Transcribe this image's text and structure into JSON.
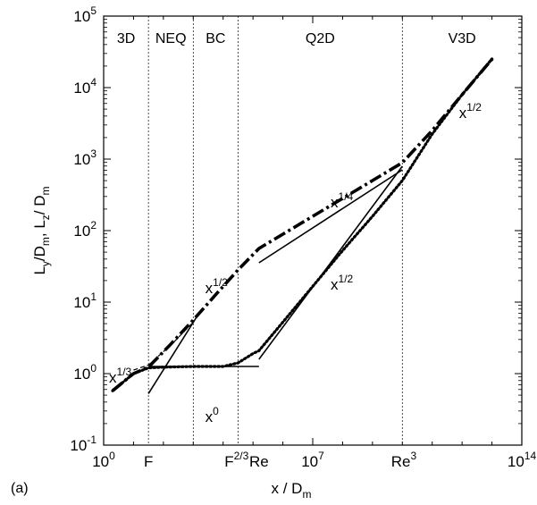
{
  "chart_data": {
    "type": "line",
    "panel_label": "(a)",
    "xscale": "log",
    "yscale": "log",
    "xlim_exp": [
      0,
      14
    ],
    "ylim_exp": [
      -1,
      5
    ],
    "xlabel": {
      "base": "x / D",
      "sub": "m"
    },
    "ylabel": {
      "l1": "L",
      "s1": "y",
      "mid": "/D",
      "s2": "m",
      "sep": ",  L",
      "s3": "z",
      "mid2": "/ D",
      "s4": "m"
    },
    "x_ticks": [
      {
        "exp": 0,
        "base": "10",
        "sup": "0"
      },
      {
        "exp": 7,
        "base": "10",
        "sup": "7"
      },
      {
        "exp": 14,
        "base": "10",
        "sup": "14"
      }
    ],
    "y_ticks": [
      {
        "exp": -1,
        "base": "10",
        "sup": "-1"
      },
      {
        "exp": 0,
        "base": "10",
        "sup": "0"
      },
      {
        "exp": 1,
        "base": "10",
        "sup": "1"
      },
      {
        "exp": 2,
        "base": "10",
        "sup": "2"
      },
      {
        "exp": 3,
        "base": "10",
        "sup": "3"
      },
      {
        "exp": 4,
        "base": "10",
        "sup": "4"
      },
      {
        "exp": 5,
        "base": "10",
        "sup": "5"
      }
    ],
    "x_marker_labels": [
      {
        "exp": 1.5,
        "base": "F",
        "sup": ""
      },
      {
        "exp": 4.45,
        "base": "F",
        "sup": "2/3"
      },
      {
        "exp": 5.2,
        "base": "Re",
        "sup": ""
      },
      {
        "exp": 10.05,
        "base": "Re",
        "sup": "3"
      }
    ],
    "region_boundaries_exp": [
      1.5,
      3.0,
      4.5,
      10.0
    ],
    "regions": [
      {
        "label": "3D",
        "center_exp": 0.75
      },
      {
        "label": "NEQ",
        "center_exp": 2.25
      },
      {
        "label": "BC",
        "center_exp": 3.75
      },
      {
        "label": "Q2D",
        "center_exp": 7.25
      },
      {
        "label": "V3D",
        "center_exp": 12.0
      }
    ],
    "series": [
      {
        "style": "dashdot",
        "points": [
          [
            0.3,
            -0.24
          ],
          [
            1.0,
            0.0
          ],
          [
            1.5,
            0.09
          ],
          [
            2.2,
            0.39
          ],
          [
            3.0,
            0.75
          ],
          [
            3.7,
            1.08
          ],
          [
            4.5,
            1.45
          ],
          [
            5.2,
            1.75
          ],
          [
            6.0,
            1.95
          ],
          [
            7.0,
            2.2
          ],
          [
            8.0,
            2.45
          ],
          [
            9.0,
            2.7
          ],
          [
            10.0,
            2.95
          ],
          [
            11.0,
            3.4
          ],
          [
            12.0,
            3.9
          ],
          [
            13.05,
            4.42
          ]
        ]
      },
      {
        "style": "dotted",
        "points": [
          [
            0.3,
            -0.24
          ],
          [
            1.0,
            0.0
          ],
          [
            1.5,
            0.08
          ],
          [
            2.0,
            0.09
          ],
          [
            3.0,
            0.1
          ],
          [
            4.0,
            0.1
          ],
          [
            4.5,
            0.15
          ],
          [
            5.0,
            0.28
          ],
          [
            5.2,
            0.32
          ],
          [
            6.0,
            0.72
          ],
          [
            7.0,
            1.22
          ],
          [
            8.0,
            1.72
          ],
          [
            9.0,
            2.2
          ],
          [
            10.0,
            2.7
          ],
          [
            11.0,
            3.35
          ],
          [
            12.0,
            3.9
          ],
          [
            13.0,
            4.4
          ]
        ]
      },
      {
        "style": "dashed",
        "points": [
          [
            1.0,
            0.05
          ],
          [
            1.5,
            0.12
          ],
          [
            2.3,
            0.42
          ],
          [
            3.0,
            0.72
          ]
        ]
      },
      {
        "style": "solid",
        "points": [
          [
            1.5,
            -0.28
          ],
          [
            3.2,
            0.85
          ]
        ]
      },
      {
        "style": "solid",
        "points": [
          [
            1.5,
            0.1
          ],
          [
            5.2,
            0.1
          ]
        ]
      },
      {
        "style": "solid",
        "points": [
          [
            5.2,
            1.55
          ],
          [
            10.0,
            2.85
          ]
        ]
      },
      {
        "style": "solid",
        "points": [
          [
            5.2,
            0.2
          ],
          [
            10.0,
            2.9
          ]
        ]
      }
    ],
    "annotations": [
      {
        "base": "x",
        "sup": "1/3",
        "x_exp": 0.18,
        "y_exp": -0.05
      },
      {
        "base": "x",
        "sup": "0",
        "x_exp": 3.4,
        "y_exp": -0.6
      },
      {
        "base": "x",
        "sup": "1/2",
        "x_exp": 3.4,
        "y_exp": 1.2
      },
      {
        "base": "x",
        "sup": "1/4",
        "x_exp": 7.6,
        "y_exp": 2.4
      },
      {
        "base": "x",
        "sup": "1/2",
        "x_exp": 7.6,
        "y_exp": 1.25
      },
      {
        "base": "x",
        "sup": "1/2",
        "x_exp": 11.9,
        "y_exp": 3.65
      }
    ]
  }
}
